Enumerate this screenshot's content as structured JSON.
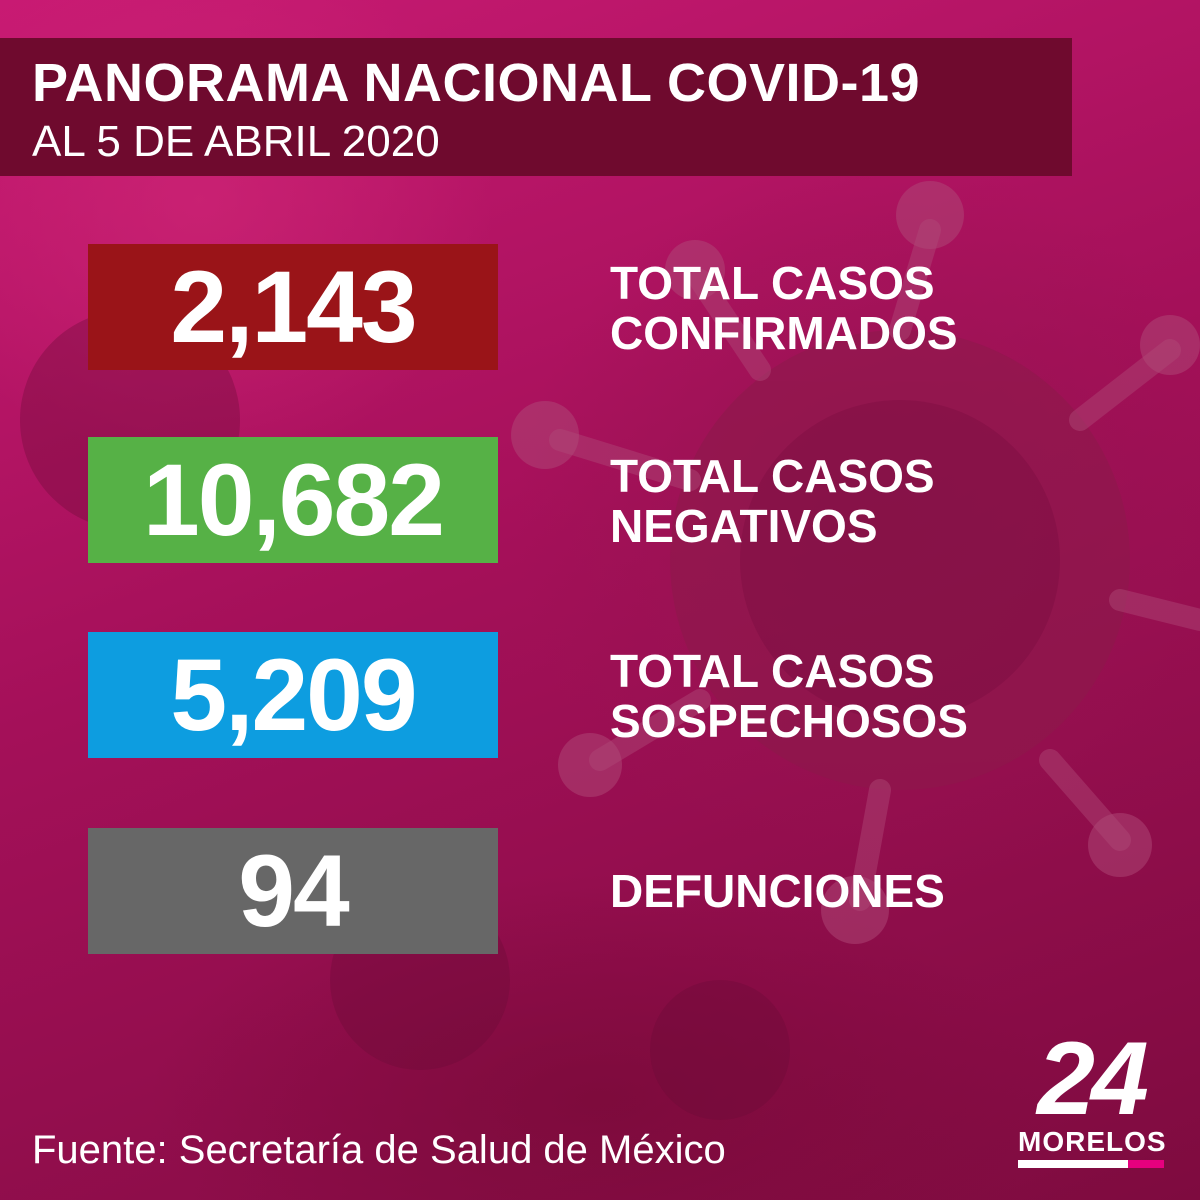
{
  "header": {
    "title": "PANORAMA NACIONAL COVID-19",
    "subtitle": "AL 5 DE ABRIL 2020"
  },
  "stats": [
    {
      "value": "2,143",
      "label_line1": "TOTAL CASOS",
      "label_line2": "CONFIRMADOS",
      "color": "#9a1418"
    },
    {
      "value": "10,682",
      "label_line1": "TOTAL CASOS",
      "label_line2": "NEGATIVOS",
      "color": "#56b146"
    },
    {
      "value": "5,209",
      "label_line1": "TOTAL CASOS",
      "label_line2": "SOSPECHOSOS",
      "color": "#0d9de0"
    },
    {
      "value": "94",
      "label_line1": "DEFUNCIONES",
      "label_line2": "",
      "color": "#676767"
    }
  ],
  "footer": {
    "source": "Fuente: Secretaría de Salud de México"
  },
  "logo": {
    "number": "24",
    "name": "MORELOS",
    "bar_colors": [
      "#ffffff",
      "#e6007e"
    ]
  },
  "colors": {
    "background": "#a41059",
    "header_box": "#6f0a2e"
  }
}
